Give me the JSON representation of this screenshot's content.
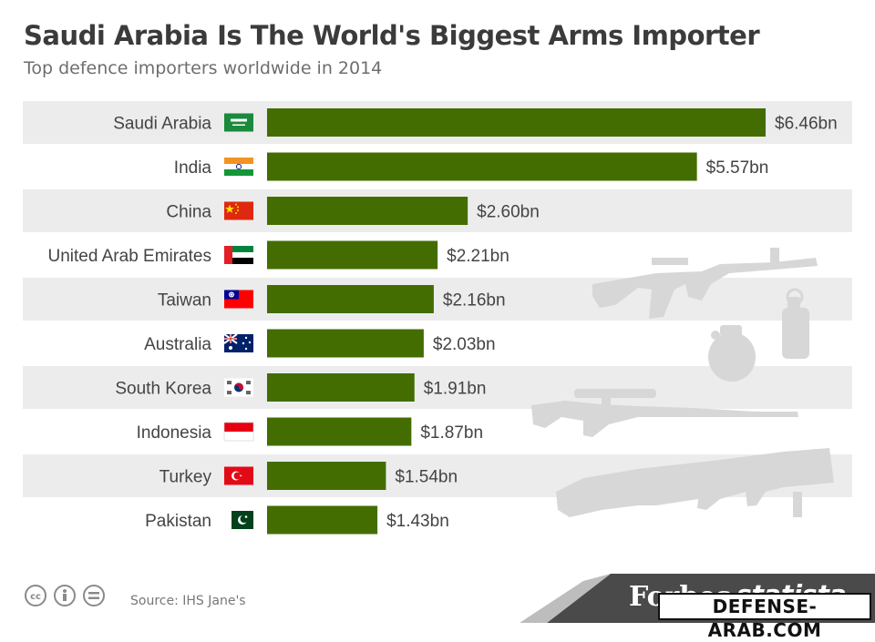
{
  "title": "Saudi Arabia Is The World's Biggest Arms Importer",
  "subtitle": "Top defence importers worldwide in 2014",
  "source": "Source: IHS Jane's",
  "brands": {
    "forbes": "Forbes",
    "statista": "statista"
  },
  "watermark": "DEFENSE-ARAB.COM",
  "colors": {
    "bar": "#436d00",
    "row_band": "#ececec",
    "label": "#444444",
    "weapon_silhouette": "#d7d7d7",
    "footer_band": "#4a4a4a"
  },
  "chart_data": {
    "type": "bar",
    "orientation": "horizontal",
    "unit": "billion USD",
    "categories": [
      "Saudi Arabia",
      "India",
      "China",
      "United Arab Emirates",
      "Taiwan",
      "Australia",
      "South Korea",
      "Indonesia",
      "Turkey",
      "Pakistan"
    ],
    "values": [
      6.46,
      5.57,
      2.6,
      2.21,
      2.16,
      2.03,
      1.91,
      1.87,
      1.54,
      1.43
    ],
    "value_labels": [
      "$6.46bn",
      "$5.57bn",
      "$2.60bn",
      "$2.21bn",
      "$2.16bn",
      "$2.03bn",
      "$1.91bn",
      "$1.87bn",
      "$1.54bn",
      "$1.43bn"
    ],
    "flags": [
      "flag-saudi-arabia-icon",
      "flag-india-icon",
      "flag-china-icon",
      "flag-uae-icon",
      "flag-taiwan-icon",
      "flag-australia-icon",
      "flag-south-korea-icon",
      "flag-indonesia-icon",
      "flag-turkey-icon",
      "flag-pakistan-icon"
    ],
    "xlim": [
      0,
      6.46
    ],
    "grid": false,
    "legend": "none"
  }
}
